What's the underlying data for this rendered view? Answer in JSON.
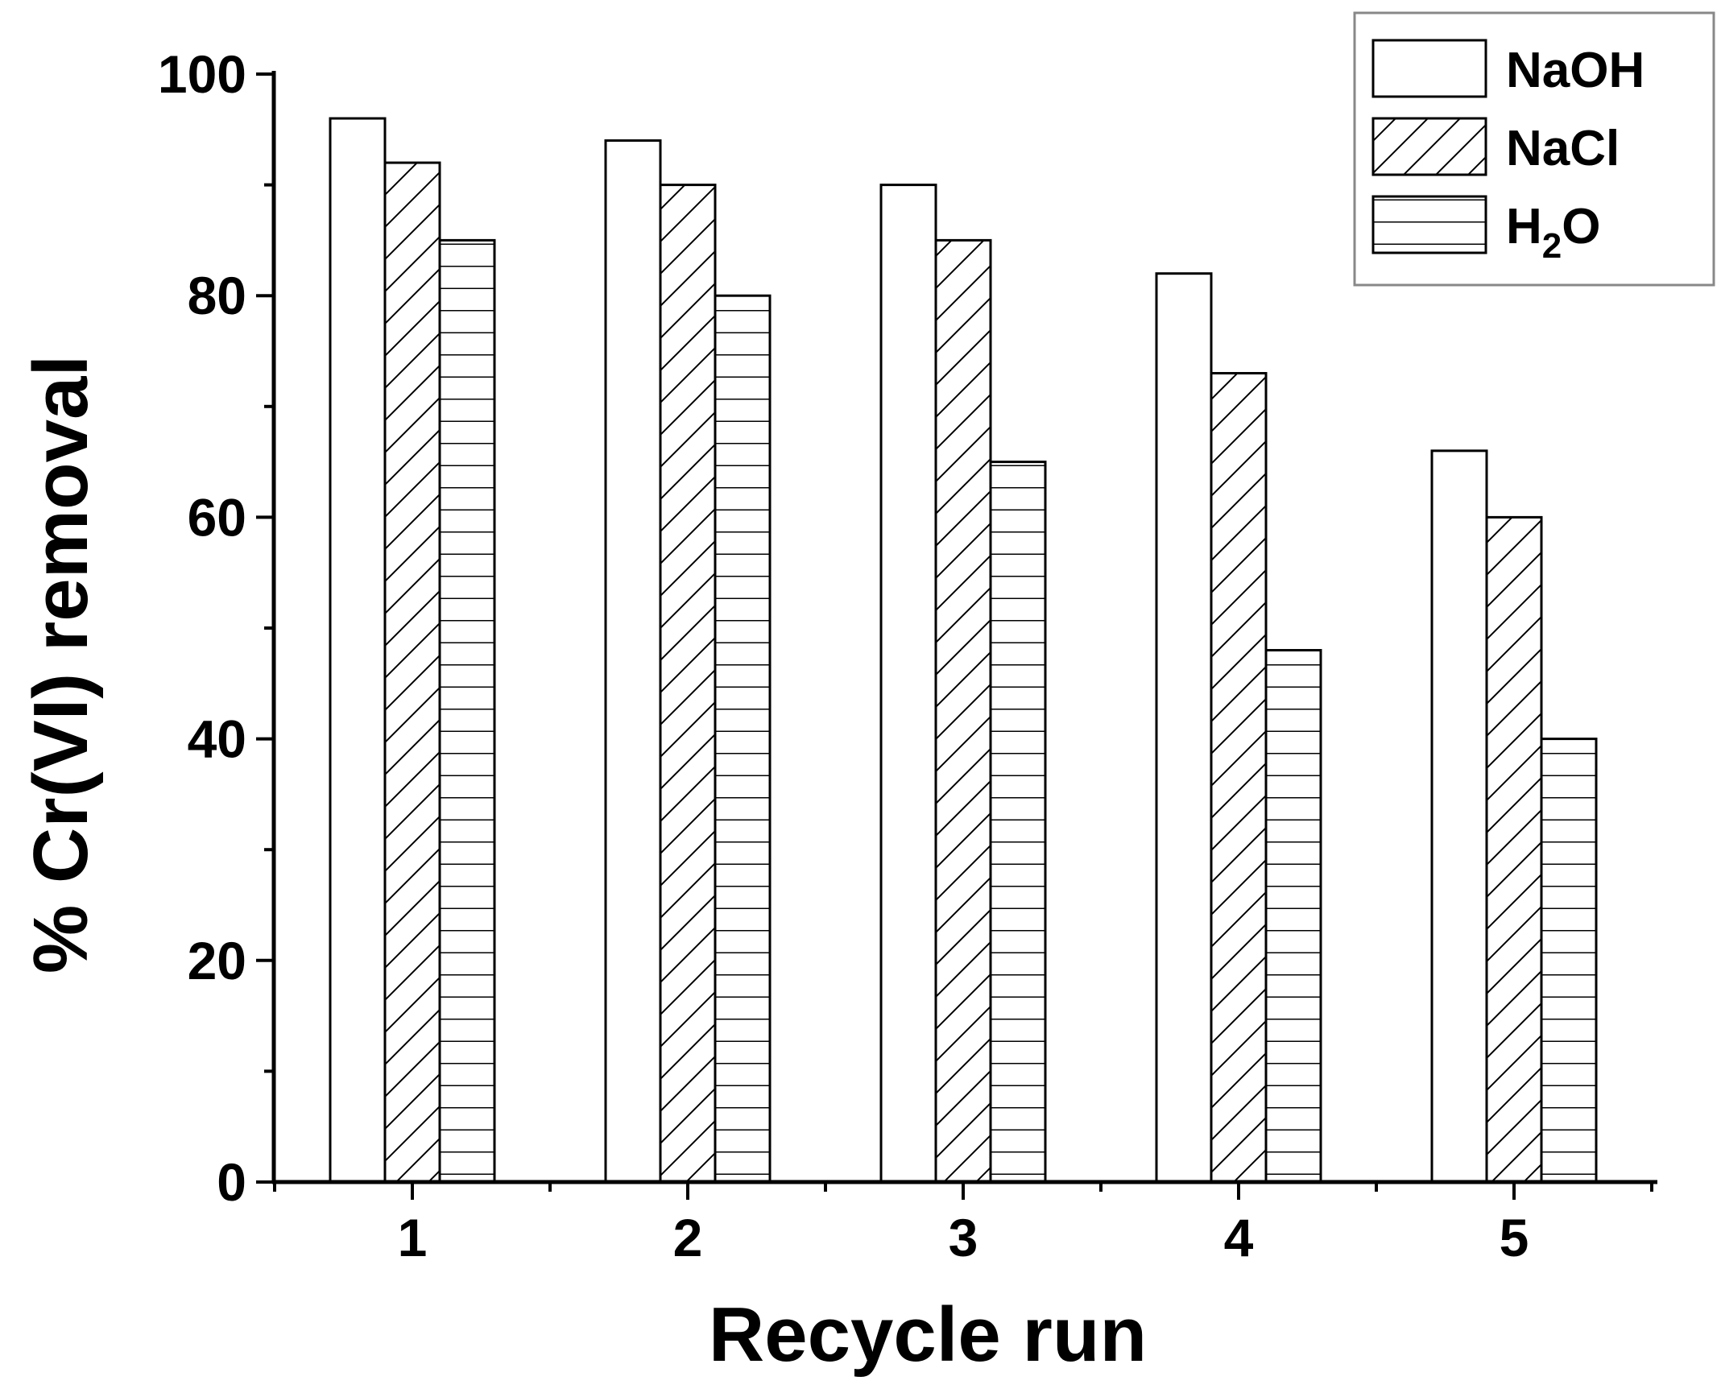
{
  "chart_data": {
    "type": "bar",
    "title": "",
    "xlabel": "Recycle run",
    "ylabel": "% Cr(VI) removal",
    "categories": [
      "1",
      "2",
      "3",
      "4",
      "5"
    ],
    "ylim": [
      0,
      100
    ],
    "yticks": [
      "0",
      "20",
      "40",
      "60",
      "80",
      "100"
    ],
    "grid": false,
    "legend_position": "top-right",
    "series": [
      {
        "name": "NaOH",
        "pattern": "open",
        "values": [
          96,
          94,
          90,
          82,
          66
        ]
      },
      {
        "name": "NaCl",
        "pattern": "diagonal-hatch",
        "values": [
          92,
          90,
          85,
          73,
          60
        ]
      },
      {
        "name": "H",
        "name_subscript": "2",
        "name_suffix": "O",
        "pattern": "horizontal-hatch",
        "values": [
          85,
          80,
          65,
          48,
          40
        ]
      }
    ]
  }
}
